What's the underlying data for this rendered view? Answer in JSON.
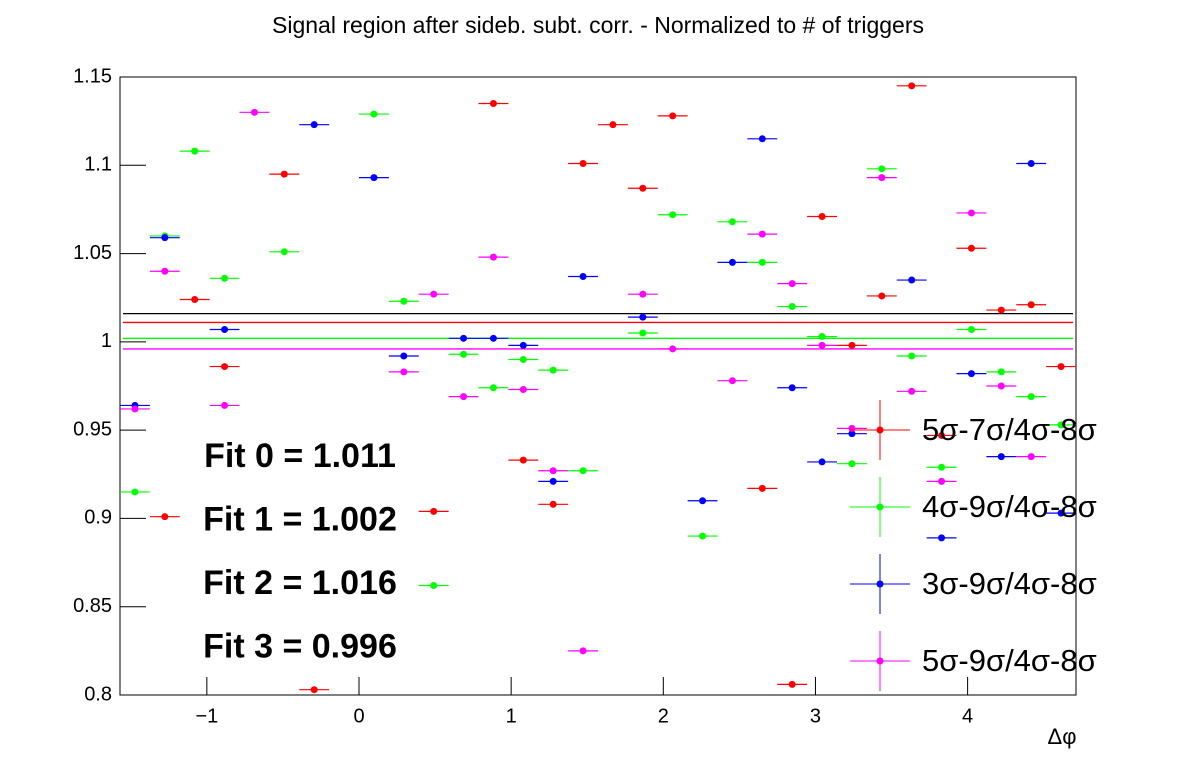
{
  "chart_data": {
    "type": "scatter",
    "title": "Signal region after sideb. subt. corr. - Normalized to # of triggers",
    "x_label": "Δφ",
    "x": [
      -1.4726,
      -1.2763,
      -1.0799,
      -0.8836,
      -0.6872,
      -0.4909,
      -0.2945,
      -0.0982,
      0.0982,
      0.2945,
      0.4909,
      0.6872,
      0.8836,
      1.0799,
      1.2763,
      1.4726,
      1.669,
      1.8653,
      2.0617,
      2.258,
      2.4544,
      2.6507,
      2.8471,
      3.0434,
      3.2398,
      3.4361,
      3.6325,
      3.8288,
      4.0252,
      4.2215,
      4.4179,
      4.6142
    ],
    "xerr": 0.0982,
    "series": [
      {
        "name": "5σ-7σ/4σ-8σ",
        "color": "#ff0000",
        "values": [
          null,
          0.901,
          1.024,
          0.986,
          null,
          1.095,
          0.803,
          null,
          null,
          null,
          0.904,
          null,
          1.135,
          0.933,
          0.908,
          1.101,
          1.123,
          1.087,
          1.128,
          null,
          null,
          0.917,
          0.806,
          1.071,
          0.998,
          1.026,
          1.145,
          0.947,
          1.053,
          1.018,
          1.021,
          0.986
        ]
      },
      {
        "name": "4σ-9σ/4σ-8σ",
        "color": "#00ff00",
        "values": [
          0.915,
          1.06,
          1.108,
          1.036,
          null,
          1.051,
          null,
          null,
          1.129,
          1.023,
          0.862,
          0.993,
          0.974,
          0.99,
          0.984,
          0.927,
          null,
          1.005,
          1.072,
          0.89,
          1.068,
          1.045,
          1.02,
          1.003,
          0.931,
          1.098,
          0.992,
          0.929,
          1.007,
          0.983,
          0.969,
          0.953
        ]
      },
      {
        "name": "3σ-9σ/4σ-8σ",
        "color": "#0000ff",
        "values": [
          0.964,
          1.059,
          null,
          1.007,
          null,
          null,
          1.123,
          null,
          1.093,
          0.992,
          null,
          1.002,
          1.002,
          0.998,
          0.921,
          1.037,
          null,
          1.014,
          null,
          0.91,
          1.045,
          1.115,
          0.974,
          0.932,
          0.948,
          null,
          1.035,
          0.889,
          0.982,
          0.935,
          1.101,
          0.903
        ]
      },
      {
        "name": "5σ-9σ/4σ-8σ",
        "color": "#ff00ff",
        "values": [
          0.962,
          1.04,
          null,
          0.964,
          1.13,
          null,
          null,
          null,
          null,
          0.983,
          1.027,
          0.969,
          1.048,
          0.973,
          0.927,
          0.825,
          null,
          1.027,
          0.996,
          null,
          0.978,
          1.061,
          1.033,
          0.998,
          0.951,
          1.093,
          0.972,
          0.921,
          1.073,
          0.975,
          0.935,
          null
        ]
      }
    ],
    "fits": [
      {
        "label": "Fit 0 = 1.011",
        "value": 1.011,
        "color": "#ff0000"
      },
      {
        "label": "Fit 1 = 1.002",
        "value": 1.002,
        "color": "#00ff00"
      },
      {
        "label": "Fit 2 = 1.016",
        "value": 1.016,
        "color": "#000000"
      },
      {
        "label": "Fit 3 = 0.996",
        "value": 0.996,
        "color": "#ff00ff"
      }
    ],
    "xlim": [
      -1.5708,
      4.7124
    ],
    "ylim": [
      0.8,
      1.15
    ],
    "xticks": [
      {
        "value": -1,
        "label": "−1"
      },
      0,
      1,
      2,
      3,
      4
    ],
    "yticks": [
      0.8,
      0.85,
      0.9,
      0.95,
      1,
      1.05,
      1.1,
      1.15
    ]
  }
}
